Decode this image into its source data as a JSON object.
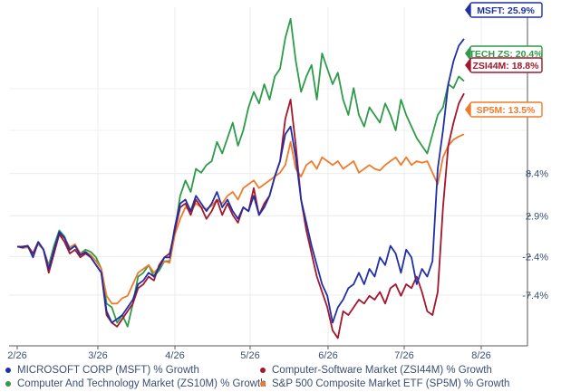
{
  "chart_data": {
    "type": "line",
    "x_ticks": [
      "2/26",
      "3/26",
      "4/26",
      "5/26",
      "6/26",
      "7/26",
      "8/26"
    ],
    "ylim": [
      -14,
      30
    ],
    "y_ticks": [
      {
        "value": 8.4,
        "label": "8.4%"
      },
      {
        "value": 2.9,
        "label": "2.9%"
      },
      {
        "value": -2.4,
        "label": "-2.4%"
      },
      {
        "value": -7.4,
        "label": "-7.4%"
      }
    ],
    "grid": true,
    "legend_position": "bottom",
    "series": [
      {
        "name": "Computer And Technology Market (ZS10M) % Growth",
        "short_label": "TECH ZS: 20.4%",
        "color": "#2e9b48",
        "values": [
          -1.1,
          -1.1,
          -1.0,
          -2.0,
          -0.5,
          -1.5,
          -3.5,
          -1.0,
          1.0,
          0.2,
          -1.5,
          -1.0,
          -2.0,
          -1.5,
          -1.8,
          -2.5,
          -4.0,
          -8.5,
          -9.0,
          -11.0,
          -10.0,
          -11.5,
          -8.5,
          -5.0,
          -4.5,
          -3.5,
          -5.0,
          -4.2,
          -3.0,
          -3.0,
          1.0,
          5.5,
          7.5,
          6.0,
          9.0,
          8.5,
          9.5,
          10.0,
          12.5,
          11.0,
          13.0,
          15.0,
          12.0,
          14.0,
          17.0,
          19.0,
          17.5,
          20.0,
          18.0,
          21.0,
          22.0,
          26.0,
          28.5,
          23.0,
          19.0,
          21.0,
          22.5,
          18.0,
          24.0,
          22.0,
          20.0,
          21.5,
          18.0,
          16.0,
          19.5,
          16.0,
          14.5,
          17.0,
          16.0,
          15.0,
          17.5,
          16.0,
          14.0,
          18.0,
          16.0,
          14.5,
          13.0,
          12.0,
          11.0,
          13.5,
          16.0,
          17.0,
          20.0,
          19.5,
          21.0,
          20.4
        ]
      },
      {
        "name": "S&P 500 Composite Market ETF (SP5M) % Growth",
        "short_label": "SP5M: 13.5%",
        "color": "#f07a2b",
        "values": [
          -1.1,
          -1.3,
          -1.2,
          -2.0,
          -0.8,
          -1.5,
          -3.8,
          -1.5,
          0.5,
          0.0,
          -1.2,
          -0.8,
          -2.0,
          -1.8,
          -2.2,
          -3.0,
          -4.0,
          -7.5,
          -8.5,
          -8.5,
          -7.8,
          -7.5,
          -6.0,
          -4.5,
          -4.0,
          -3.5,
          -4.5,
          -3.8,
          -3.0,
          -3.2,
          0.5,
          2.5,
          4.0,
          3.5,
          4.5,
          4.0,
          3.8,
          4.2,
          5.0,
          4.5,
          5.5,
          6.0,
          5.0,
          6.5,
          7.0,
          7.5,
          6.5,
          7.0,
          7.5,
          8.0,
          8.5,
          9.5,
          12.5,
          9.0,
          8.0,
          9.5,
          10.0,
          9.0,
          10.5,
          10.0,
          9.5,
          10.0,
          9.0,
          9.5,
          10.0,
          8.5,
          9.0,
          9.5,
          9.0,
          8.8,
          9.5,
          10.0,
          10.5,
          9.5,
          10.5,
          9.5,
          10.0,
          9.8,
          10.0,
          8.5,
          7.0,
          10.5,
          12.0,
          12.8,
          13.2,
          13.5
        ]
      },
      {
        "name": "Computer-Software Market (ZSI44M) % Growth",
        "short_label": "ZSI44M: 18.8%",
        "color": "#a3162b",
        "values": [
          -1.1,
          -1.1,
          -1.0,
          -2.0,
          -0.5,
          -1.5,
          -4.5,
          -2.0,
          0.5,
          -0.5,
          -2.0,
          -1.5,
          -2.5,
          -2.0,
          -2.5,
          -3.5,
          -4.5,
          -10.0,
          -11.0,
          -11.5,
          -10.5,
          -9.5,
          -8.5,
          -6.5,
          -6.0,
          -5.0,
          -5.5,
          -3.5,
          -2.5,
          -2.0,
          1.0,
          4.0,
          4.5,
          3.0,
          5.0,
          4.0,
          2.5,
          3.5,
          5.0,
          3.0,
          4.5,
          3.0,
          2.0,
          4.0,
          3.5,
          6.5,
          3.0,
          4.5,
          5.5,
          8.0,
          10.0,
          15.5,
          18.0,
          12.0,
          5.0,
          1.0,
          -2.0,
          -5.0,
          -7.0,
          -9.0,
          -12.0,
          -13.0,
          -9.5,
          -10.0,
          -9.0,
          -8.0,
          -8.5,
          -7.5,
          -8.0,
          -7.0,
          -8.5,
          -6.5,
          -6.0,
          -7.5,
          -6.0,
          -6.5,
          -5.0,
          -7.0,
          -9.5,
          -10.0,
          -7.0,
          4.0,
          12.0,
          15.0,
          17.5,
          18.8
        ]
      },
      {
        "name": "MICROSOFT CORP (MSFT) % Growth",
        "short_label": "MSFT: 25.9%",
        "color": "#1f2fa8",
        "values": [
          -1.1,
          -1.2,
          -1.0,
          -2.5,
          -0.5,
          -1.5,
          -4.0,
          -1.5,
          0.8,
          0.0,
          -1.5,
          -1.0,
          -2.2,
          -1.8,
          -2.5,
          -3.5,
          -4.5,
          -9.5,
          -11.0,
          -10.5,
          -10.0,
          -9.0,
          -8.0,
          -6.0,
          -5.5,
          -4.5,
          -5.0,
          -3.8,
          -2.5,
          -2.5,
          1.5,
          4.5,
          5.0,
          3.5,
          5.5,
          4.5,
          3.5,
          4.5,
          6.0,
          4.0,
          5.0,
          3.5,
          2.5,
          4.0,
          3.5,
          5.5,
          3.0,
          4.0,
          5.5,
          8.0,
          10.0,
          13.5,
          14.5,
          10.5,
          5.0,
          2.0,
          -1.0,
          -3.5,
          -6.0,
          -7.5,
          -11.0,
          -9.0,
          -8.0,
          -6.5,
          -6.0,
          -4.5,
          -6.0,
          -4.0,
          -5.0,
          -2.5,
          -3.5,
          -1.0,
          -2.0,
          -4.5,
          -1.5,
          -2.5,
          -6.0,
          -4.0,
          -5.0,
          -3.0,
          9.0,
          14.0,
          20.0,
          23.0,
          25.0,
          25.9
        ]
      }
    ]
  }
}
